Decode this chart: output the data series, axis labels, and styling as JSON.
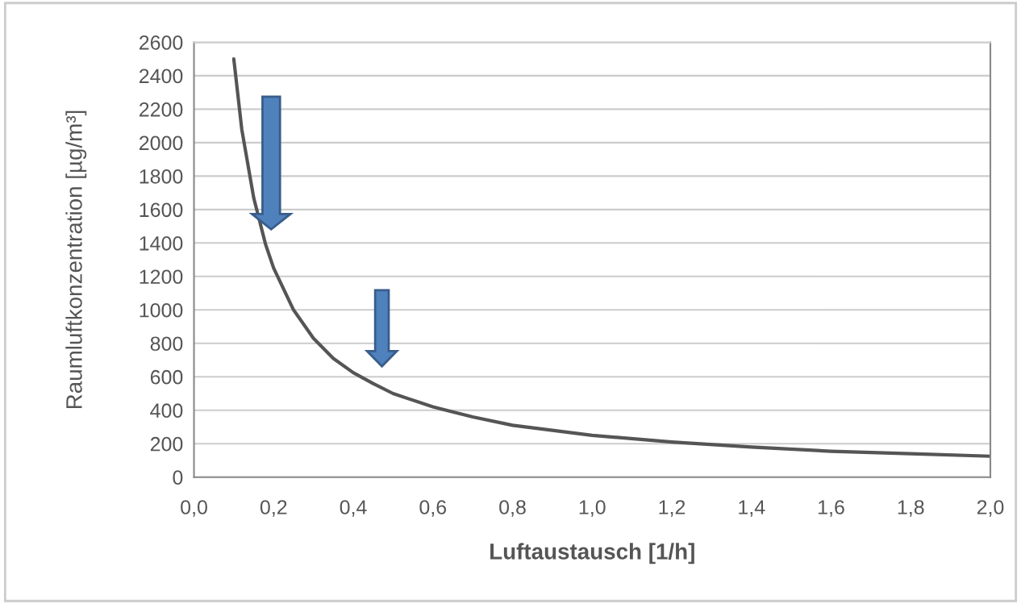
{
  "chart_data": {
    "type": "line",
    "xlabel": "Luftaustausch [1/h]",
    "ylabel": "Raumluftkonzentration [µg/m³]",
    "x": [
      0.1,
      0.12,
      0.15,
      0.18,
      0.2,
      0.25,
      0.3,
      0.35,
      0.4,
      0.45,
      0.5,
      0.6,
      0.7,
      0.8,
      0.9,
      1.0,
      1.2,
      1.4,
      1.6,
      1.8,
      2.0
    ],
    "series": [
      {
        "color": "#555555",
        "values": [
          2500,
          2080,
          1670,
          1390,
          1250,
          1000,
          830,
          710,
          625,
          560,
          500,
          420,
          360,
          310,
          280,
          250,
          210,
          180,
          155,
          140,
          125
        ]
      }
    ],
    "xlim": [
      0,
      2.0
    ],
    "ylim": [
      0,
      2600
    ],
    "xticks": [
      {
        "value": 0,
        "label": "0,0"
      },
      {
        "value": 0.2,
        "label": "0,2"
      },
      {
        "value": 0.4,
        "label": "0,4"
      },
      {
        "value": 0.6,
        "label": "0,6"
      },
      {
        "value": 0.8,
        "label": "0,8"
      },
      {
        "value": 1.0,
        "label": "1,0"
      },
      {
        "value": 1.2,
        "label": "1,2"
      },
      {
        "value": 1.4,
        "label": "1,4"
      },
      {
        "value": 1.6,
        "label": "1,6"
      },
      {
        "value": 1.8,
        "label": "1,8"
      },
      {
        "value": 2.0,
        "label": "2,0"
      }
    ],
    "yticks": [
      0,
      200,
      400,
      600,
      800,
      1000,
      1200,
      1400,
      1600,
      1800,
      2000,
      2200,
      2400,
      2600
    ],
    "grid": "y",
    "marker": "none",
    "line_style": "solid"
  }
}
